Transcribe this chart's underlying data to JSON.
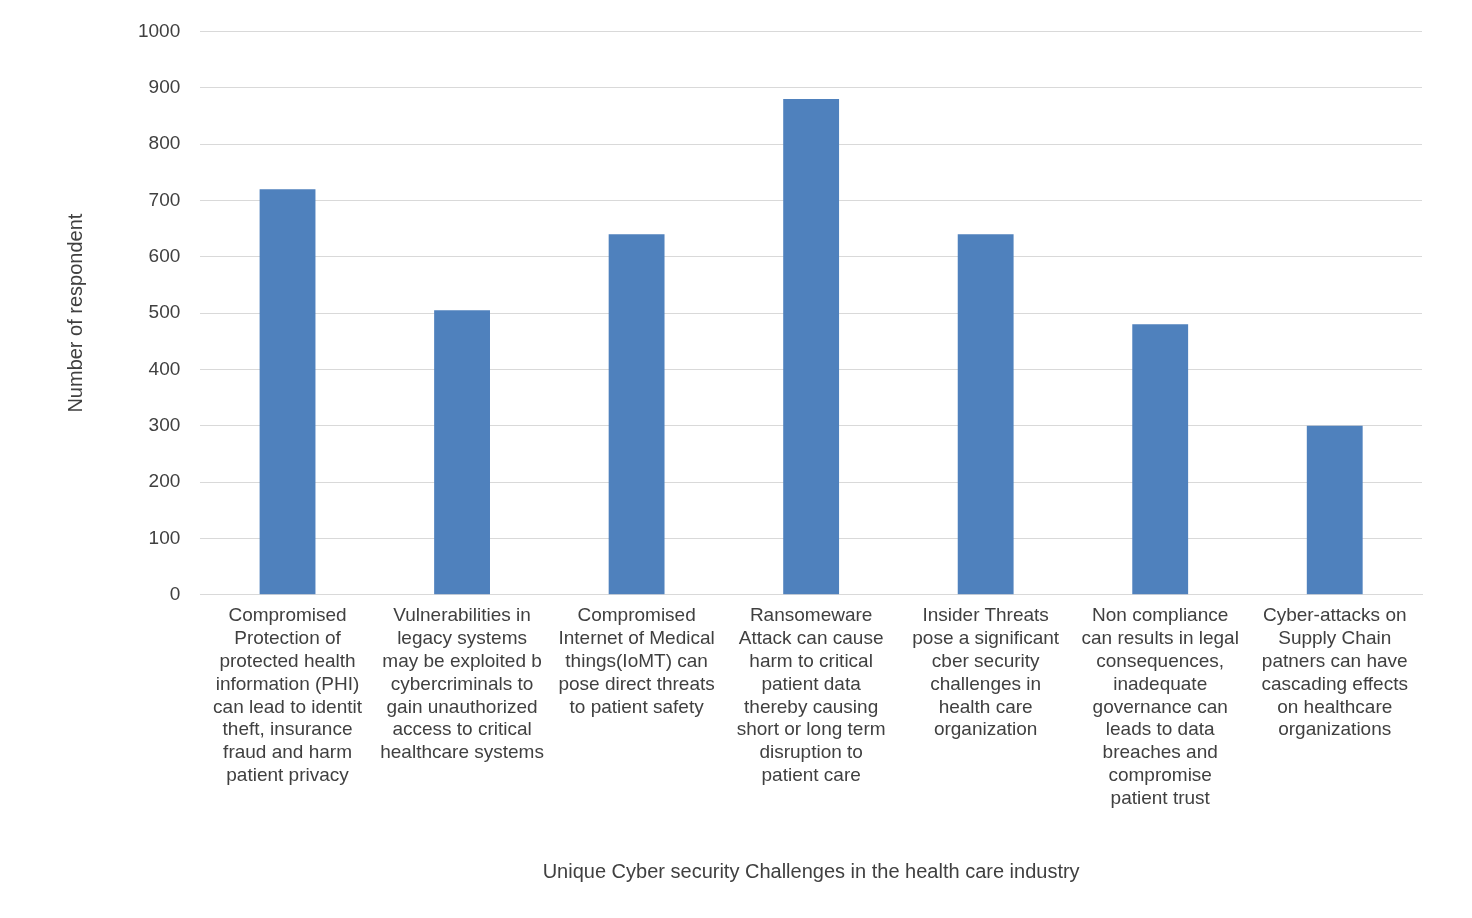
{
  "chart_data": {
    "type": "bar",
    "xlabel": "Unique Cyber security Challenges in the health care industry",
    "ylabel": "Number of respondent",
    "categories": [
      "Compromised Protection of protected health information (PHI) can lead to identit theft, insurance fraud and harm patient privacy",
      "Vulnerabilities in legacy systems may be exploited b cybercriminals to gain unauthorized access to critical healthcare systems",
      "Compromised Internet of Medical things(IoMT) can pose direct threats to patient safety",
      "Ransomeware Attack can cause harm to critical patient data thereby causing short or long term disruption to patient care",
      "Insider Threats pose a significant cber security challenges in health care organization",
      "Non compliance can results in legal consequences, inadequate governance can leads to data breaches and compromise patient trust",
      "Cyber-attacks on Supply Chain patners can have cascading effects on healthcare organizations"
    ],
    "values": [
      720,
      505,
      640,
      880,
      640,
      480,
      300
    ],
    "color": "#4f81bd",
    "ylim": [
      0,
      1000
    ],
    "yticks": [
      0,
      100,
      200,
      300,
      400,
      500,
      600,
      700,
      800,
      900,
      1000
    ],
    "grid": "y",
    "legend": false
  }
}
